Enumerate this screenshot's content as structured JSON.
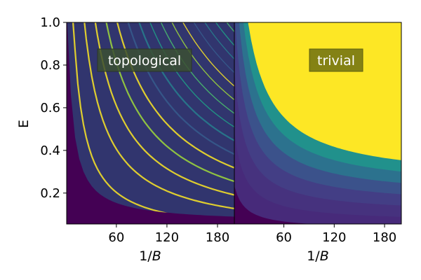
{
  "chart_data": [
    {
      "type": "heatmap",
      "panel_label": "topological",
      "xlabel_main": "1/",
      "xlabel_var": "B",
      "ylabel": "E",
      "xlim": [
        1,
        200
      ],
      "ylim": [
        0.055,
        1.0
      ],
      "xticks": [
        60,
        120,
        180
      ],
      "xtick_labels": [
        "60",
        "120",
        "180"
      ],
      "yticks": [
        0.2,
        0.4,
        0.6,
        0.8,
        1.0
      ],
      "ytick_labels": [
        "0.2",
        "0.4",
        "0.6",
        "0.8",
        "1.0"
      ],
      "colormap": "viridis",
      "label_box_color": "#3b4f32",
      "grid": false
    },
    {
      "type": "heatmap",
      "panel_label": "trivial",
      "xlabel_main": "1/",
      "xlabel_var": "B",
      "ylabel": "",
      "xlim": [
        1,
        200
      ],
      "ylim": [
        0.055,
        1.0
      ],
      "xticks": [
        60,
        120,
        180
      ],
      "xtick_labels": [
        "60",
        "120",
        "180"
      ],
      "yticks": [],
      "ytick_labels": [],
      "colormap": "viridis",
      "label_box_color": "#7a7a12",
      "grid": false
    }
  ]
}
